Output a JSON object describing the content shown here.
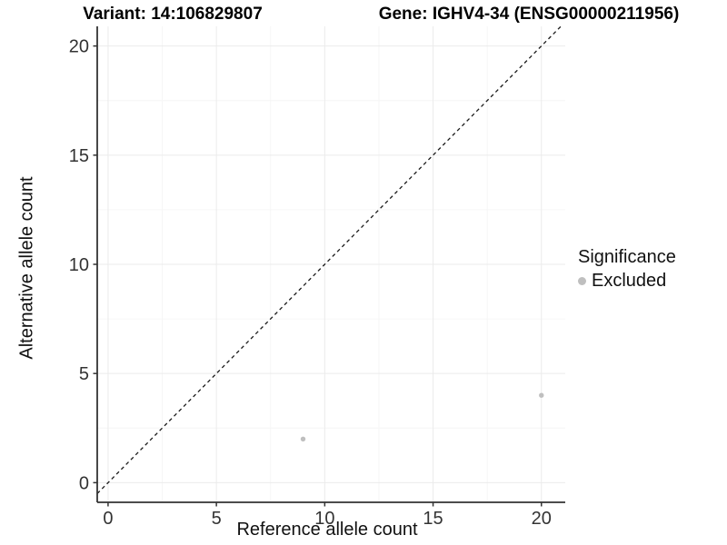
{
  "chart_data": {
    "type": "scatter",
    "title_left": "Variant: 14:106829807",
    "title_right": "Gene: IGHV4-34 (ENSG00000211956)",
    "xlabel": "Reference allele count",
    "ylabel": "Alternative allele count",
    "xticks": [
      0,
      5,
      10,
      15,
      20
    ],
    "yticks": [
      0,
      5,
      10,
      15,
      20
    ],
    "xlim": [
      -0.5,
      21.1
    ],
    "ylim": [
      -0.9,
      20.9
    ],
    "grid": {
      "major": true,
      "minor": true,
      "major_color": "#ebebeb",
      "minor_color": "#f6f6f6"
    },
    "reference_line": {
      "type": "identity",
      "slope": 1,
      "intercept": 0,
      "style": "dashed",
      "color": "#1a1a1a"
    },
    "series": [
      {
        "name": "Excluded",
        "color": "#bfbfbf",
        "points": [
          {
            "x": 9,
            "y": 2
          },
          {
            "x": 20,
            "y": 4
          }
        ]
      }
    ],
    "legend": {
      "title": "Significance",
      "position": "right",
      "items": [
        {
          "label": "Excluded",
          "color": "#bfbfbf"
        }
      ]
    },
    "axis_color": "#333333",
    "tick_label_color": "#333333"
  }
}
